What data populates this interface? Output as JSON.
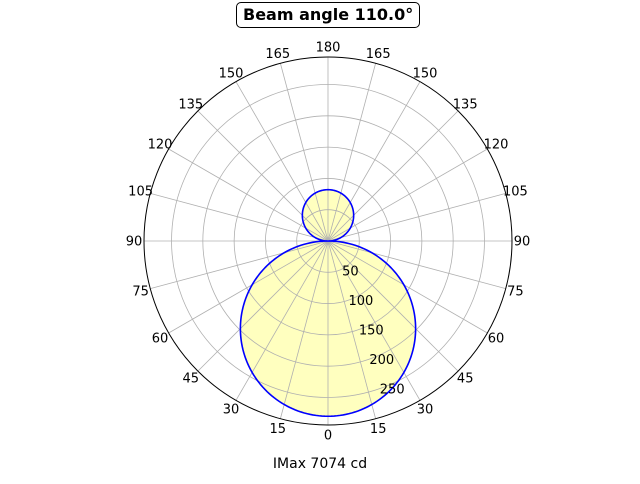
{
  "chart_data": {
    "type": "polar-line",
    "title": "Beam angle 110.0°",
    "xlabel": "IMax 7074 cd",
    "angle_tick_labels": [
      "0",
      "15",
      "30",
      "45",
      "60",
      "75",
      "90",
      "105",
      "120",
      "135",
      "150",
      "165",
      "180",
      "165",
      "150",
      "135",
      "120",
      "105",
      "90",
      "75",
      "60",
      "45",
      "30",
      "15"
    ],
    "angle_tick_degrees": [
      0,
      15,
      30,
      45,
      60,
      75,
      90,
      105,
      120,
      135,
      150,
      165,
      180,
      195,
      210,
      225,
      240,
      255,
      270,
      285,
      300,
      315,
      330,
      345
    ],
    "radial_ticks": [
      50,
      100,
      150,
      200,
      250
    ],
    "rlim": [
      0,
      294
    ],
    "grid": true,
    "series": [
      {
        "line_color": "#0000ff",
        "fill_color": "#ffffbf",
        "lobes": [
          {
            "direction_deg": 0,
            "peak": 280
          },
          {
            "direction_deg": 180,
            "peak": 82
          }
        ]
      }
    ]
  }
}
